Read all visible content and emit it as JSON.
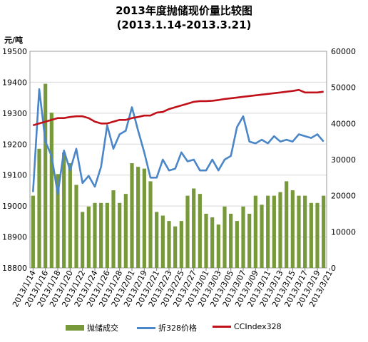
{
  "title_line1": "2013年度抛储现价量比较图",
  "title_line2": "(2013.1.14-2013.3.21)",
  "left_unit": "元/吨",
  "colors": {
    "bar": "#78993a",
    "line1": "#4a86c8",
    "line2": "#c0111a",
    "grid": "#d8d8d8"
  },
  "chart_data": {
    "type": "bar",
    "title": "2013年度抛储现价量比较图",
    "subtitle": "(2013.1.14-2013.3.21)",
    "ylabel": "元/吨",
    "y_left": {
      "min": 18800,
      "max": 19500,
      "ticks": [
        18800,
        18900,
        19000,
        19100,
        19200,
        19300,
        19400,
        19500
      ]
    },
    "y_right": {
      "min": 0,
      "max": 60000,
      "ticks": [
        0,
        10000,
        20000,
        30000,
        40000,
        50000,
        60000
      ]
    },
    "x_tick_labels": [
      "2013/1/14",
      "2013/1/16",
      "2013/1/18",
      "2013/1/20",
      "2013/1/22",
      "2013/1/24",
      "2013/1/26",
      "2013/1/28",
      "2013/2/01",
      "2013/2/19",
      "2013/2/21",
      "2013/2/23",
      "2013/2/25",
      "2013/2/27",
      "2013/3/01",
      "2013/3/03",
      "2013/3/05",
      "2013/3/07",
      "2013/3/09",
      "2013/3/11",
      "2013/3/13",
      "2013/3/15",
      "2013/3/17",
      "2013/3/19",
      "2013/3/21"
    ],
    "n_points": 48,
    "series": [
      {
        "name": "抛储成交",
        "type": "bar",
        "axis": "right",
        "values": [
          20000,
          33000,
          51000,
          43000,
          26000,
          32000,
          29000,
          23000,
          15500,
          17000,
          18000,
          18000,
          18000,
          21500,
          18000,
          20500,
          29000,
          28000,
          27500,
          24000,
          15500,
          14500,
          13000,
          11500,
          13000,
          20000,
          22000,
          20500,
          15000,
          14000,
          12000,
          17000,
          15000,
          13000,
          17000,
          15000,
          20000,
          17500,
          20000,
          20000,
          21000,
          24000,
          21500,
          20000,
          20000,
          18000,
          18000,
          20000
        ]
      },
      {
        "name": "折328价格",
        "type": "line",
        "axis": "right",
        "values": [
          21000,
          49500,
          35000,
          31000,
          20500,
          32500,
          27000,
          33000,
          23500,
          25500,
          22500,
          28000,
          39500,
          33000,
          37000,
          38000,
          44500,
          38000,
          32000,
          25000,
          25000,
          30000,
          27000,
          27500,
          32000,
          29500,
          30000,
          27000,
          27000,
          30000,
          27000,
          30000,
          31000,
          39000,
          42000,
          35000,
          34500,
          35500,
          34500,
          36500,
          35000,
          35500,
          35000,
          37000,
          36500,
          36000,
          37000,
          35000
        ]
      },
      {
        "name": "CCIndex328",
        "type": "line",
        "axis": "right",
        "values": [
          39500,
          40000,
          40500,
          41000,
          41500,
          41500,
          41800,
          42000,
          42000,
          41500,
          40500,
          40000,
          40000,
          40500,
          41000,
          41000,
          41500,
          41800,
          42200,
          42200,
          43000,
          43200,
          44000,
          44500,
          45000,
          45500,
          46000,
          46200,
          46200,
          46300,
          46500,
          46800,
          47000,
          47200,
          47400,
          47600,
          47800,
          48000,
          48200,
          48400,
          48600,
          48800,
          49000,
          49300,
          48600,
          48600,
          48600,
          48800
        ]
      }
    ],
    "grid": "horizontal",
    "legend_position": "bottom"
  },
  "legend": [
    {
      "label": "抛储成交"
    },
    {
      "label": "折328价格"
    },
    {
      "label": "CCIndex328"
    }
  ]
}
